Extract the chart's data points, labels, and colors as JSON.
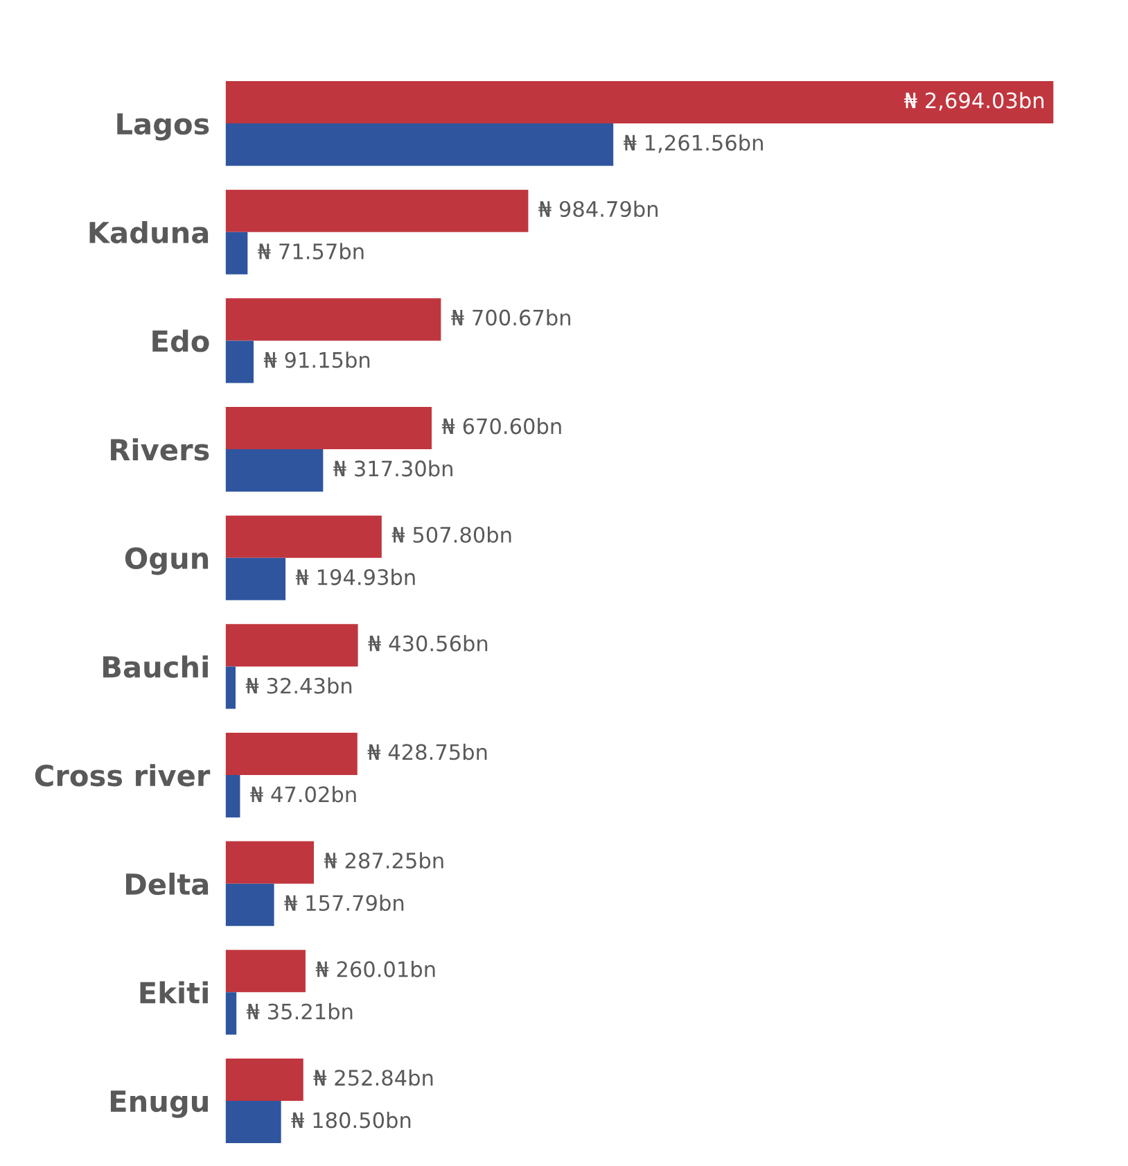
{
  "chart_data": {
    "type": "bar",
    "orientation": "horizontal",
    "categories": [
      "Lagos",
      "Kaduna",
      "Edo",
      "Rivers",
      "Ogun",
      "Bauchi",
      "Cross river",
      "Delta",
      "Ekiti",
      "Enugu"
    ],
    "series": [
      {
        "color": "#c0363f",
        "values": [
          2694.03,
          984.79,
          700.67,
          670.6,
          507.8,
          430.56,
          428.75,
          287.25,
          260.01,
          252.84
        ],
        "value_labels": [
          "₦ 2,694.03bn",
          "₦ 984.79bn",
          "₦ 700.67bn",
          "₦ 670.60bn",
          "₦ 507.80bn",
          "₦ 430.56bn",
          "₦ 428.75bn",
          "₦ 287.25bn",
          "₦ 260.01bn",
          "₦ 252.84bn"
        ]
      },
      {
        "color": "#2e559e",
        "values": [
          1261.56,
          71.57,
          91.15,
          317.3,
          194.93,
          32.43,
          47.02,
          157.79,
          35.21,
          180.5
        ],
        "value_labels": [
          "₦ 1,261.56bn",
          "₦ 71.57bn",
          "₦ 91.15bn",
          "₦ 317.30bn",
          "₦ 194.93bn",
          "₦ 32.43bn",
          "₦ 47.02bn",
          "₦ 157.79bn",
          "₦ 35.21bn",
          "₦ 180.50bn"
        ]
      }
    ],
    "grid": false,
    "legend": false,
    "tick_labels": "y"
  }
}
